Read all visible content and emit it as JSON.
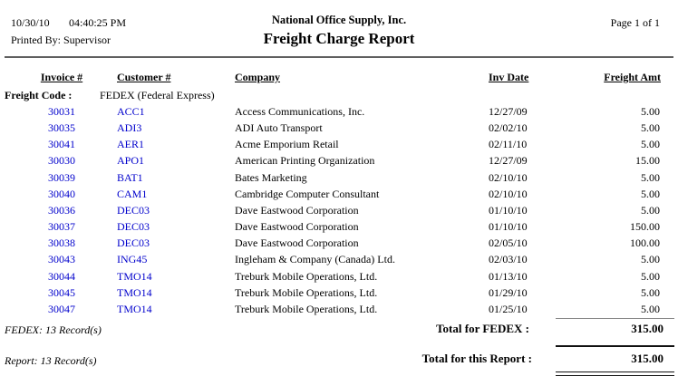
{
  "colors": {
    "link_blue": "#0000CC",
    "text": "#000000"
  },
  "header": {
    "print_date": "10/30/10",
    "print_time": "04:40:25 PM",
    "printed_by": "Printed By: Supervisor",
    "company_name": "National Office Supply, Inc.",
    "report_title": "Freight Charge Report",
    "page_indicator": "Page 1 of 1"
  },
  "table": {
    "columns": {
      "invoice": "Invoice #",
      "customer": "Customer #",
      "company": "Company",
      "inv_date": "Inv Date",
      "freight_amt": "Freight Amt"
    },
    "group_header": {
      "label": "Freight Code :",
      "value": "FEDEX (Federal Express)"
    },
    "rows": [
      {
        "invoice": "30031",
        "customer": "ACC1",
        "company": "Access Communications, Inc.",
        "inv_date": "12/27/09",
        "freight_amt": "5.00"
      },
      {
        "invoice": "30035",
        "customer": "ADI3",
        "company": "ADI Auto Transport",
        "inv_date": "02/02/10",
        "freight_amt": "5.00"
      },
      {
        "invoice": "30041",
        "customer": "AER1",
        "company": "Acme Emporium Retail",
        "inv_date": "02/11/10",
        "freight_amt": "5.00"
      },
      {
        "invoice": "30030",
        "customer": "APO1",
        "company": "American Printing Organization",
        "inv_date": "12/27/09",
        "freight_amt": "15.00"
      },
      {
        "invoice": "30039",
        "customer": "BAT1",
        "company": "Bates Marketing",
        "inv_date": "02/10/10",
        "freight_amt": "5.00"
      },
      {
        "invoice": "30040",
        "customer": "CAM1",
        "company": "Cambridge Computer Consultant",
        "inv_date": "02/10/10",
        "freight_amt": "5.00"
      },
      {
        "invoice": "30036",
        "customer": "DEC03",
        "company": "Dave Eastwood Corporation",
        "inv_date": "01/10/10",
        "freight_amt": "5.00"
      },
      {
        "invoice": "30037",
        "customer": "DEC03",
        "company": "Dave Eastwood Corporation",
        "inv_date": "01/10/10",
        "freight_amt": "150.00"
      },
      {
        "invoice": "30038",
        "customer": "DEC03",
        "company": "Dave Eastwood Corporation",
        "inv_date": "02/05/10",
        "freight_amt": "100.00"
      },
      {
        "invoice": "30043",
        "customer": "ING45",
        "company": "Ingleham & Company (Canada) Ltd.",
        "inv_date": "02/03/10",
        "freight_amt": "5.00"
      },
      {
        "invoice": "30044",
        "customer": "TMO14",
        "company": "Treburk Mobile Operations, Ltd.",
        "inv_date": "01/13/10",
        "freight_amt": "5.00"
      },
      {
        "invoice": "30045",
        "customer": "TMO14",
        "company": "Treburk Mobile Operations, Ltd.",
        "inv_date": "01/29/10",
        "freight_amt": "5.00"
      },
      {
        "invoice": "30047",
        "customer": "TMO14",
        "company": "Treburk Mobile Operations, Ltd.",
        "inv_date": "01/25/10",
        "freight_amt": "5.00"
      }
    ],
    "group_footer": {
      "record_count": "FEDEX: 13 Record(s)",
      "total_label": "Total for FEDEX :",
      "total_amount": "315.00"
    },
    "report_footer": {
      "record_count": "Report: 13 Record(s)",
      "total_label": "Total for this Report :",
      "total_amount": "315.00"
    }
  }
}
